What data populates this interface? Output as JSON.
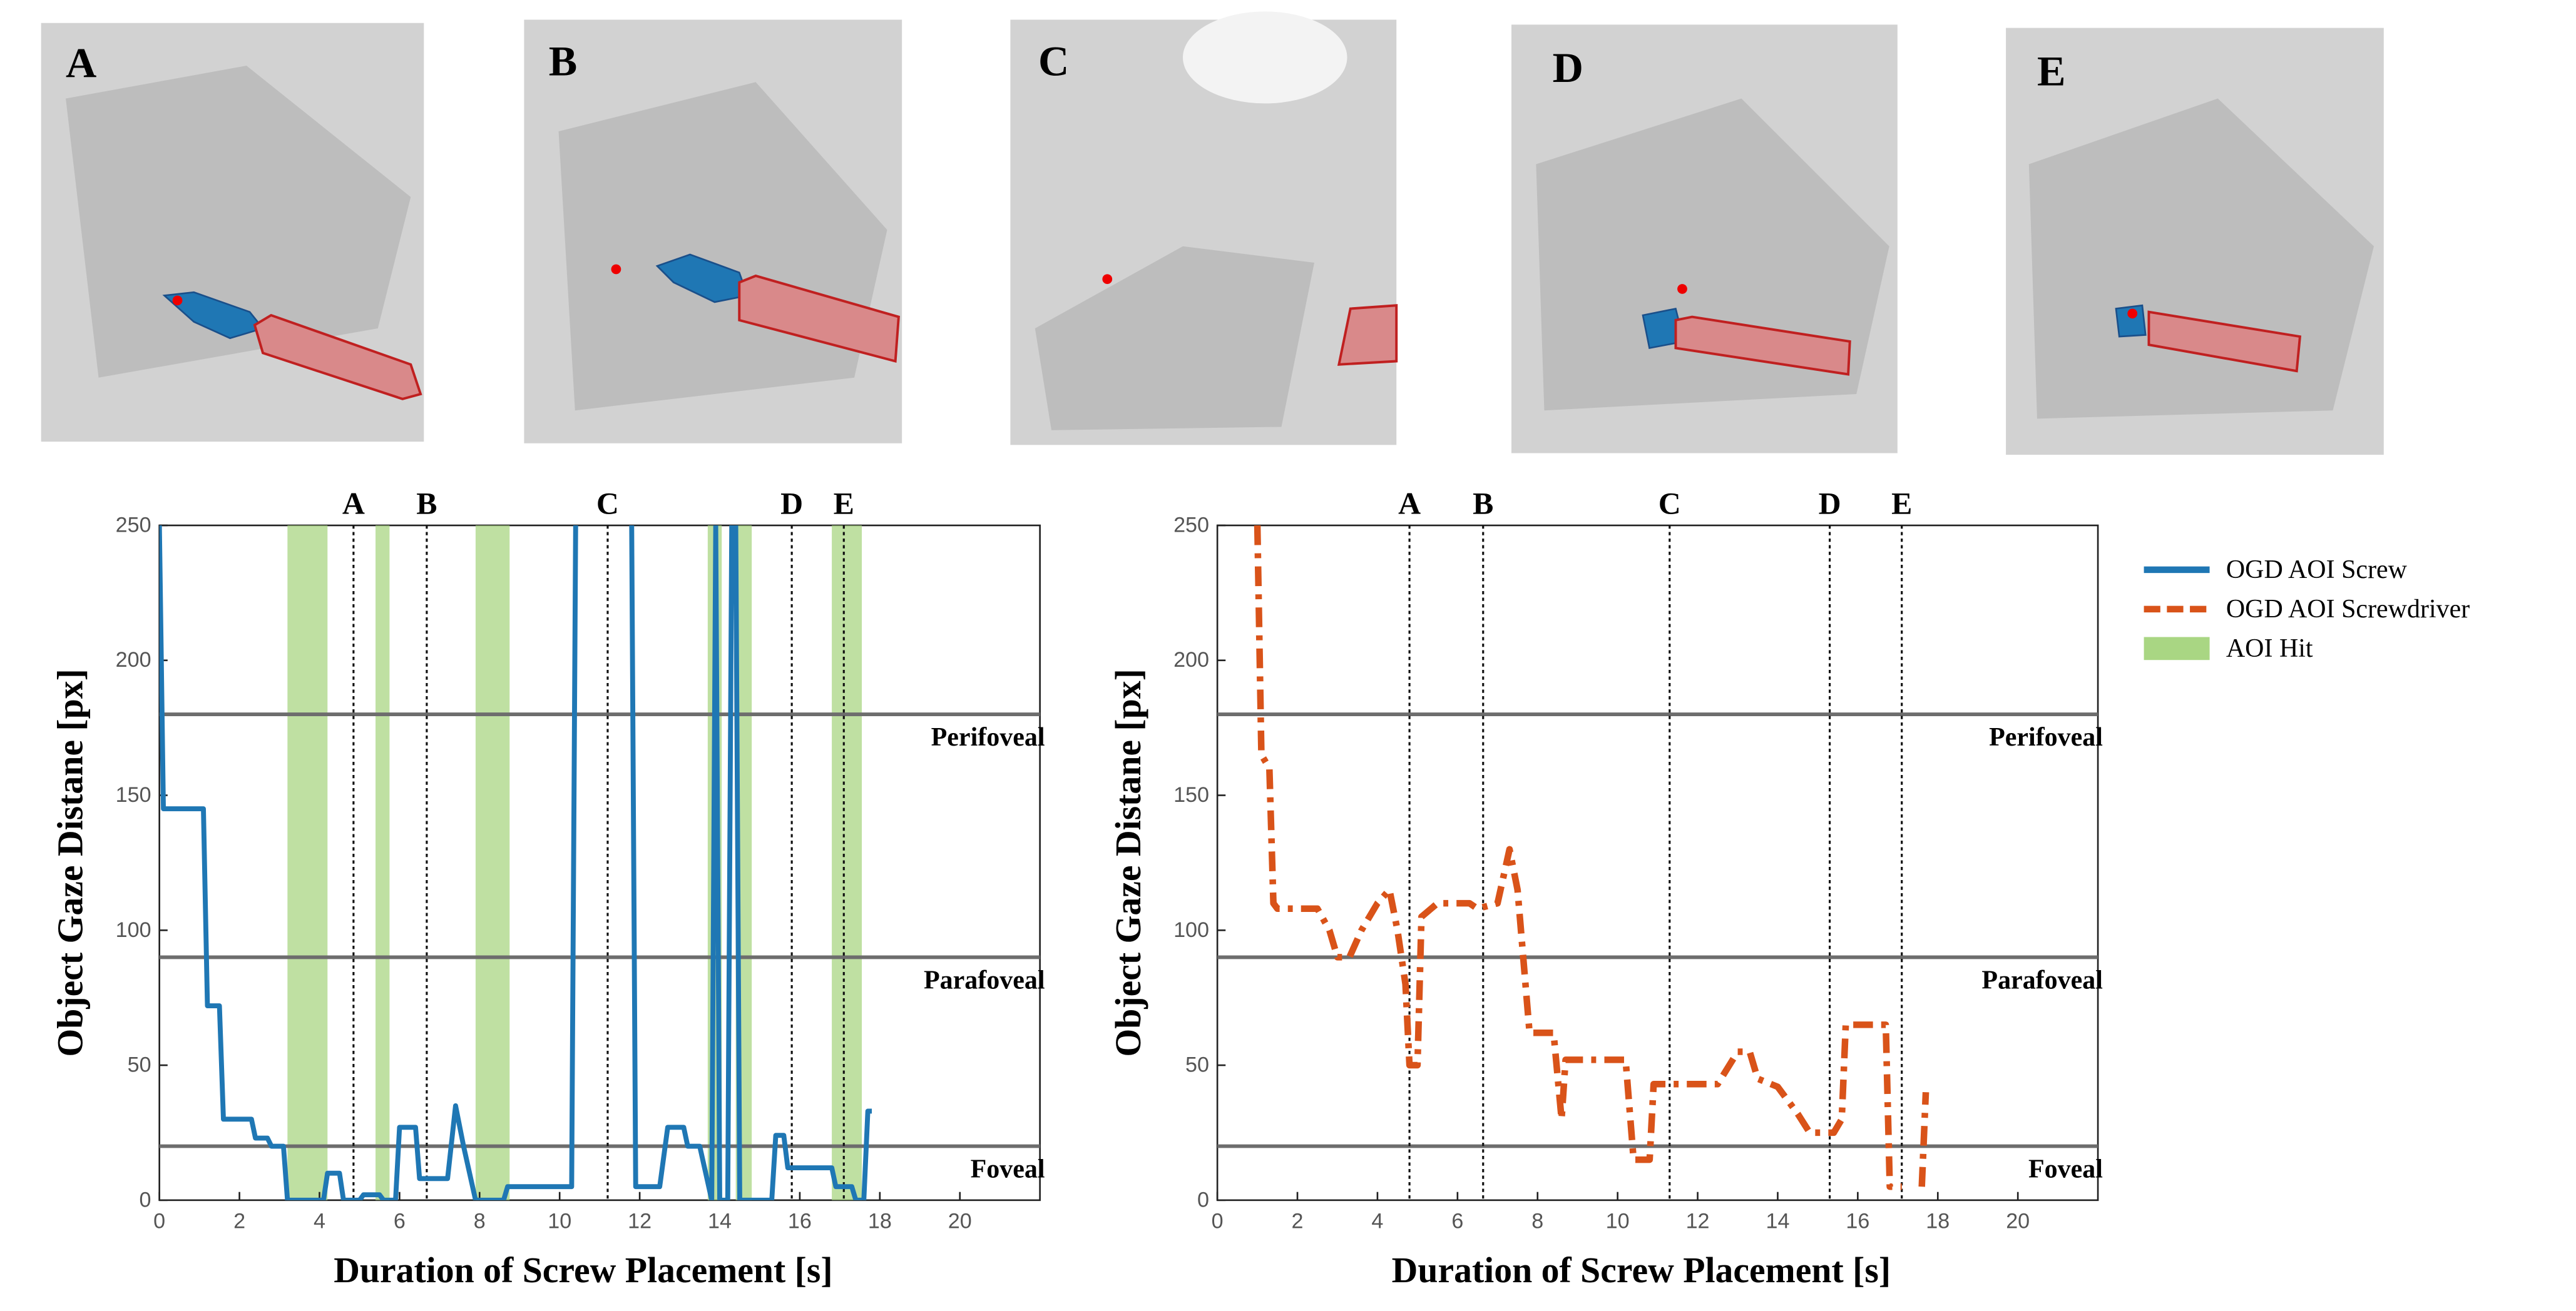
{
  "panels": [
    {
      "label": "A"
    },
    {
      "label": "B"
    },
    {
      "label": "C"
    },
    {
      "label": "D"
    },
    {
      "label": "E"
    }
  ],
  "chart_data": [
    {
      "type": "line",
      "xlabel": "Duration of Screw Placement [s]",
      "ylabel": "Object Gaze Distane [px]",
      "xlim": [
        0,
        22
      ],
      "ylim": [
        0,
        250
      ],
      "xticks": [
        0,
        2,
        4,
        6,
        8,
        10,
        12,
        14,
        16,
        18,
        20
      ],
      "yticks": [
        0,
        50,
        100,
        150,
        200,
        250
      ],
      "thresholds": [
        {
          "value": 180,
          "label": "Perifoveal"
        },
        {
          "value": 90,
          "label": "Parafoveal"
        },
        {
          "value": 20,
          "label": "Foveal"
        }
      ],
      "events": [
        {
          "value": 4.85,
          "label": "A"
        },
        {
          "value": 6.68,
          "label": "B"
        },
        {
          "value": 11.2,
          "label": "C"
        },
        {
          "value": 15.8,
          "label": "D"
        },
        {
          "value": 17.1,
          "label": "E"
        }
      ],
      "aoi_hits": {
        "name": "AOI Hit",
        "color": "#a9d683",
        "intervals": [
          [
            3.2,
            4.2
          ],
          [
            5.4,
            5.75
          ],
          [
            7.9,
            8.75
          ],
          [
            13.7,
            14.05
          ],
          [
            14.4,
            14.8
          ],
          [
            16.8,
            17.55
          ]
        ]
      },
      "series": [
        {
          "name": "OGD AOI Screw",
          "color": "#1f77b4",
          "dash": false,
          "x": [
            0,
            0.1,
            1.1,
            1.2,
            1.5,
            1.6,
            2.3,
            2.4,
            2.7,
            2.8,
            3.1,
            3.2,
            4.1,
            4.2,
            4.5,
            4.6,
            5.0,
            5.1,
            5.5,
            5.6,
            5.9,
            6.0,
            6.4,
            6.5,
            7.2,
            7.4,
            7.6,
            7.9,
            8.6,
            8.7,
            10.3,
            10.4,
            11.0,
            11.8,
            11.9,
            12.5,
            12.7,
            13.1,
            13.2,
            13.5,
            13.8,
            13.9,
            14.0,
            14.2,
            14.3,
            14.4,
            14.5,
            14.7,
            15.3,
            15.4,
            15.6,
            15.7,
            16.8,
            16.9,
            17.3,
            17.4,
            17.6,
            17.7,
            17.8
          ],
          "values": [
            250,
            145,
            145,
            72,
            72,
            30,
            30,
            23,
            23,
            20,
            20,
            0,
            0,
            10,
            10,
            0,
            0,
            2,
            2,
            0,
            0,
            27,
            27,
            8,
            8,
            35,
            20,
            0,
            0,
            5,
            5,
            250,
            null,
            250,
            5,
            5,
            27,
            27,
            20,
            20,
            0,
            250,
            0,
            0,
            250,
            250,
            0,
            0,
            0,
            24,
            24,
            12,
            12,
            5,
            5,
            0,
            0,
            33,
            33
          ]
        }
      ]
    },
    {
      "type": "line",
      "xlabel": "Duration of Screw Placement [s]",
      "ylabel": "Object Gaze Distane [px]",
      "xlim": [
        0,
        22
      ],
      "ylim": [
        0,
        250
      ],
      "xticks": [
        0,
        2,
        4,
        6,
        8,
        10,
        12,
        14,
        16,
        18,
        20
      ],
      "yticks": [
        0,
        50,
        100,
        150,
        200,
        250
      ],
      "thresholds": [
        {
          "value": 180,
          "label": "Perifoveal"
        },
        {
          "value": 90,
          "label": "Parafoveal"
        },
        {
          "value": 20,
          "label": "Foveal"
        }
      ],
      "events": [
        {
          "value": 4.8,
          "label": "A"
        },
        {
          "value": 6.64,
          "label": "B"
        },
        {
          "value": 11.3,
          "label": "C"
        },
        {
          "value": 15.3,
          "label": "D"
        },
        {
          "value": 17.1,
          "label": "E"
        }
      ],
      "series": [
        {
          "name": "OGD AOI Screwdriver",
          "color": "#d95319",
          "dash": true,
          "x": [
            1.0,
            1.1,
            1.3,
            1.4,
            1.5,
            2.5,
            2.8,
            3.0,
            3.3,
            3.6,
            4.0,
            4.3,
            4.5,
            4.7,
            4.8,
            5.0,
            5.1,
            5.5,
            6.3,
            6.5,
            7.0,
            7.3,
            7.5,
            7.8,
            8.4,
            8.6,
            8.7,
            10.2,
            10.4,
            10.8,
            10.9,
            12.5,
            13.0,
            13.3,
            13.5,
            14.0,
            14.5,
            14.8,
            15.4,
            15.6,
            15.7,
            16.7,
            16.8,
            17.1,
            17.3,
            17.6,
            17.7
          ],
          "values": [
            250,
            165,
            160,
            110,
            108,
            108,
            100,
            90,
            90,
            100,
            110,
            115,
            100,
            80,
            50,
            50,
            105,
            110,
            110,
            108,
            110,
            130,
            115,
            62,
            62,
            30,
            52,
            52,
            15,
            15,
            43,
            43,
            55,
            55,
            45,
            42,
            32,
            25,
            25,
            30,
            65,
            65,
            5,
            5,
            null,
            5,
            40
          ]
        }
      ]
    }
  ]
}
